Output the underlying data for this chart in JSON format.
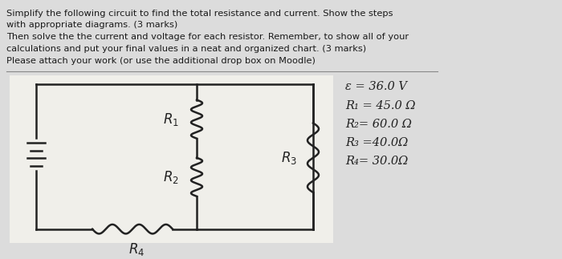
{
  "background_color": "#dcdcdc",
  "text_lines": [
    "Simplify the following circuit to find the total resistance and current. Show the steps",
    "with appropriate diagrams. (3 marks)",
    "Then solve the the current and voltage for each resistor. Remember, to show all of your",
    "calculations and put your final values in a neat and organized chart. (3 marks)",
    "Please attach your work (or use the additional drop box on Moodle)"
  ],
  "circuit_values_raw": [
    "ε = 36.0 V",
    "R₁ = 45.0 Ω",
    "R₂= 60.0 Ω",
    "R₃ =40.0Ω",
    "R₄= 30.0Ω"
  ],
  "panel_bg": "#f0efea",
  "text_color": "#1a1a1a",
  "circuit_color": "#222222",
  "sep_color": "#888888"
}
